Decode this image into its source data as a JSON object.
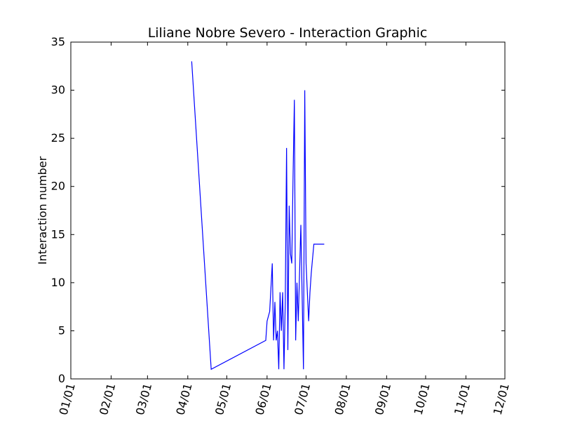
{
  "chart_data": {
    "type": "line",
    "title": "Liliane Nobre Severo - Interaction Graphic",
    "xlabel": "",
    "ylabel": "Interaction number",
    "x_ticks": [
      "01/01",
      "02/01",
      "03/01",
      "04/01",
      "05/01",
      "06/01",
      "07/01",
      "08/01",
      "09/01",
      "10/01",
      "11/01",
      "12/01"
    ],
    "y_ticks": [
      "0",
      "5",
      "10",
      "15",
      "20",
      "25",
      "30",
      "35"
    ],
    "ylim": [
      0,
      35
    ],
    "xlim": [
      "01/01",
      "12/01"
    ],
    "grid": false,
    "line_color": "#0000ff",
    "series": [
      {
        "x": [
          "04/04",
          "04/19",
          "05/31",
          "06/01",
          "06/03",
          "06/05",
          "06/06",
          "06/07",
          "06/08",
          "06/09",
          "06/10",
          "06/11",
          "06/12",
          "06/13",
          "06/14",
          "06/15",
          "06/16",
          "06/17",
          "06/18",
          "06/19",
          "06/20",
          "06/21",
          "06/22",
          "06/23",
          "06/24",
          "06/25",
          "06/27",
          "06/29",
          "06/30",
          "07/01",
          "07/02",
          "07/03",
          "07/04",
          "07/05",
          "07/07",
          "07/09",
          "07/11",
          "07/13",
          "07/14",
          "07/15"
        ],
        "y": [
          33,
          1,
          4,
          6,
          7,
          12,
          4,
          8,
          4,
          5,
          1,
          9,
          5,
          9,
          1,
          8,
          24,
          3,
          18,
          13,
          12,
          21,
          29,
          4,
          10,
          6,
          16,
          1,
          30,
          12,
          9,
          6,
          9,
          11,
          14,
          14,
          14,
          14,
          14,
          14
        ]
      }
    ]
  }
}
